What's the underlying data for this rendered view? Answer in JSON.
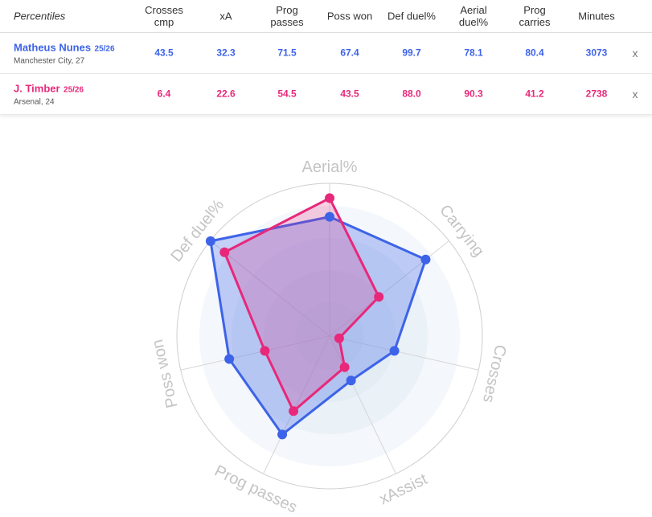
{
  "table": {
    "header": [
      "Percentiles",
      "Crosses cmp",
      "xA",
      "Prog passes",
      "Poss won",
      "Def duel%",
      "Aerial duel%",
      "Prog carries",
      "Minutes"
    ],
    "rows": [
      {
        "name": "Matheus Nunes",
        "season": "25/26",
        "club": "Manchester City, 27",
        "color": "#3d63e8",
        "cells": [
          "43.5",
          "32.3",
          "71.5",
          "67.4",
          "99.7",
          "78.1",
          "80.4",
          "3073"
        ],
        "remove": "x"
      },
      {
        "name": "J. Timber",
        "season": "25/26",
        "club": "Arsenal, 24",
        "color": "#e8287a",
        "cells": [
          "6.4",
          "22.6",
          "54.5",
          "43.5",
          "88.0",
          "90.3",
          "41.2",
          "2738"
        ],
        "remove": "x"
      }
    ]
  },
  "chart_data": {
    "type": "radar",
    "categories": [
      "Aerial%",
      "Carrying",
      "Crosses",
      "xAssist",
      "Prog passes",
      "Poss won",
      "Def duel%"
    ],
    "ylim": [
      0,
      100
    ],
    "series": [
      {
        "color": "#3d63e8",
        "values": [
          78.1,
          80.4,
          43.5,
          32.3,
          71.5,
          67.4,
          99.7
        ]
      },
      {
        "color": "#e8287a",
        "values": [
          90.3,
          41.2,
          6.4,
          22.6,
          54.5,
          43.5,
          88.0
        ]
      }
    ]
  }
}
